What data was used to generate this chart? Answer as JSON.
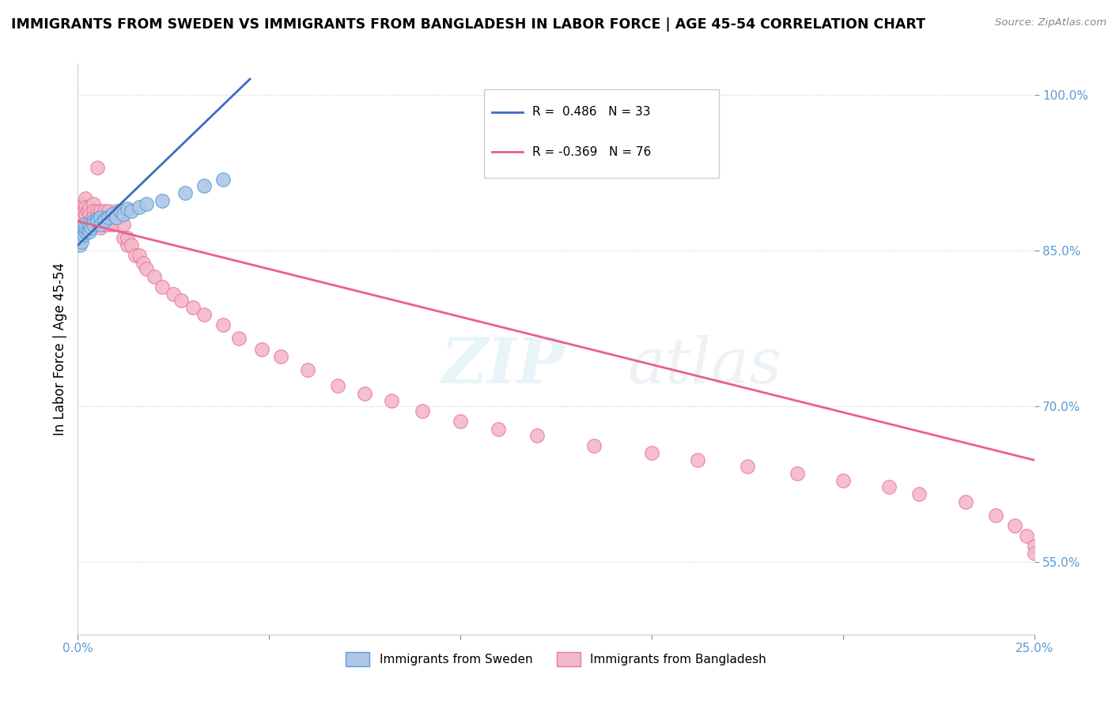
{
  "title": "IMMIGRANTS FROM SWEDEN VS IMMIGRANTS FROM BANGLADESH IN LABOR FORCE | AGE 45-54 CORRELATION CHART",
  "source": "Source: ZipAtlas.com",
  "ylabel": "In Labor Force | Age 45-54",
  "xlim": [
    0.0,
    0.25
  ],
  "ylim": [
    0.48,
    1.03
  ],
  "xtick_vals": [
    0.0,
    0.05,
    0.1,
    0.15,
    0.2,
    0.25
  ],
  "xtick_labels": [
    "0.0%",
    "",
    "",
    "",
    "",
    "25.0%"
  ],
  "ytick_vals": [
    0.55,
    0.7,
    0.85,
    1.0
  ],
  "ytick_labels": [
    "55.0%",
    "70.0%",
    "85.0%",
    "100.0%"
  ],
  "sweden_color": "#aec6e8",
  "bangladesh_color": "#f4b8c8",
  "sweden_edge": "#5a9fd4",
  "bangladesh_edge": "#e87aa0",
  "trend_blue": "#3a6dbf",
  "trend_pink": "#e8608a",
  "R_sweden": 0.486,
  "N_sweden": 33,
  "R_bangladesh": -0.369,
  "N_bangladesh": 76,
  "legend_sweden": "Immigrants from Sweden",
  "legend_bangladesh": "Immigrants from Bangladesh",
  "sweden_x": [
    0.0005,
    0.0008,
    0.001,
    0.0012,
    0.0015,
    0.0015,
    0.002,
    0.002,
    0.0025,
    0.003,
    0.003,
    0.0035,
    0.004,
    0.004,
    0.005,
    0.005,
    0.006,
    0.006,
    0.007,
    0.007,
    0.008,
    0.009,
    0.01,
    0.011,
    0.012,
    0.013,
    0.014,
    0.016,
    0.018,
    0.022,
    0.028,
    0.033,
    0.038
  ],
  "sweden_y": [
    0.855,
    0.862,
    0.858,
    0.87,
    0.865,
    0.875,
    0.868,
    0.872,
    0.87,
    0.875,
    0.868,
    0.872,
    0.878,
    0.875,
    0.88,
    0.878,
    0.882,
    0.875,
    0.88,
    0.878,
    0.882,
    0.885,
    0.882,
    0.888,
    0.885,
    0.89,
    0.888,
    0.892,
    0.895,
    0.898,
    0.905,
    0.912,
    0.918
  ],
  "bangladesh_x": [
    0.0005,
    0.0008,
    0.001,
    0.001,
    0.0012,
    0.0015,
    0.0015,
    0.002,
    0.002,
    0.002,
    0.0025,
    0.003,
    0.003,
    0.003,
    0.004,
    0.004,
    0.004,
    0.005,
    0.005,
    0.005,
    0.006,
    0.006,
    0.006,
    0.007,
    0.007,
    0.007,
    0.008,
    0.008,
    0.008,
    0.009,
    0.009,
    0.01,
    0.01,
    0.011,
    0.011,
    0.012,
    0.012,
    0.013,
    0.013,
    0.014,
    0.015,
    0.016,
    0.017,
    0.018,
    0.02,
    0.022,
    0.025,
    0.027,
    0.03,
    0.033,
    0.038,
    0.042,
    0.048,
    0.053,
    0.06,
    0.068,
    0.075,
    0.082,
    0.09,
    0.1,
    0.11,
    0.12,
    0.135,
    0.15,
    0.162,
    0.175,
    0.188,
    0.2,
    0.212,
    0.22,
    0.232,
    0.24,
    0.245,
    0.248,
    0.25,
    0.25
  ],
  "bangladesh_y": [
    0.88,
    0.888,
    0.892,
    0.885,
    0.88,
    0.895,
    0.875,
    0.9,
    0.892,
    0.885,
    0.888,
    0.892,
    0.885,
    0.878,
    0.895,
    0.888,
    0.882,
    0.93,
    0.888,
    0.882,
    0.888,
    0.882,
    0.872,
    0.888,
    0.882,
    0.875,
    0.888,
    0.882,
    0.875,
    0.882,
    0.875,
    0.888,
    0.882,
    0.888,
    0.882,
    0.875,
    0.862,
    0.855,
    0.862,
    0.855,
    0.845,
    0.845,
    0.838,
    0.832,
    0.825,
    0.815,
    0.808,
    0.802,
    0.795,
    0.788,
    0.778,
    0.765,
    0.755,
    0.748,
    0.735,
    0.72,
    0.712,
    0.705,
    0.695,
    0.685,
    0.678,
    0.672,
    0.662,
    0.655,
    0.648,
    0.642,
    0.635,
    0.628,
    0.622,
    0.615,
    0.608,
    0.595,
    0.585,
    0.575,
    0.565,
    0.558
  ]
}
